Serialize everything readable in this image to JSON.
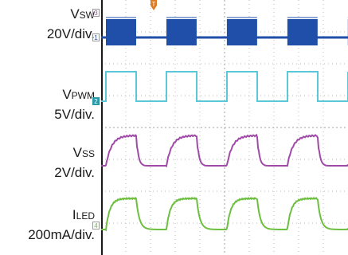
{
  "channels": [
    {
      "id": "vsw",
      "name_main": "V",
      "name_sub": "SW",
      "scale": "20V/div.",
      "marker": "3",
      "ground_marker": "1",
      "color": "#1f4fa8"
    },
    {
      "id": "vpwm",
      "name_main": "V",
      "name_sub": "PWM",
      "scale": "5V/div.",
      "marker": "2",
      "color": "#5bc8d8"
    },
    {
      "id": "vss",
      "name_main": "V",
      "name_sub": "SS",
      "scale": "2V/div.",
      "color": "#a04aa8"
    },
    {
      "id": "iled",
      "name_main": "I",
      "name_sub": "LED",
      "scale": "200mA/div.",
      "marker": "4",
      "color": "#6dbf3f"
    }
  ],
  "trigger_marker": {
    "label": "T",
    "color": "#e07a20"
  },
  "chart_data": {
    "type": "line",
    "grid": true,
    "x_divisions": 10,
    "y_divisions": 8,
    "pwm_period_div": 2.45,
    "pwm_duty": 0.5,
    "series": [
      {
        "name": "VSW"
      },
      {
        "name": "VPWM"
      },
      {
        "name": "VSS"
      },
      {
        "name": "ILED"
      }
    ]
  }
}
